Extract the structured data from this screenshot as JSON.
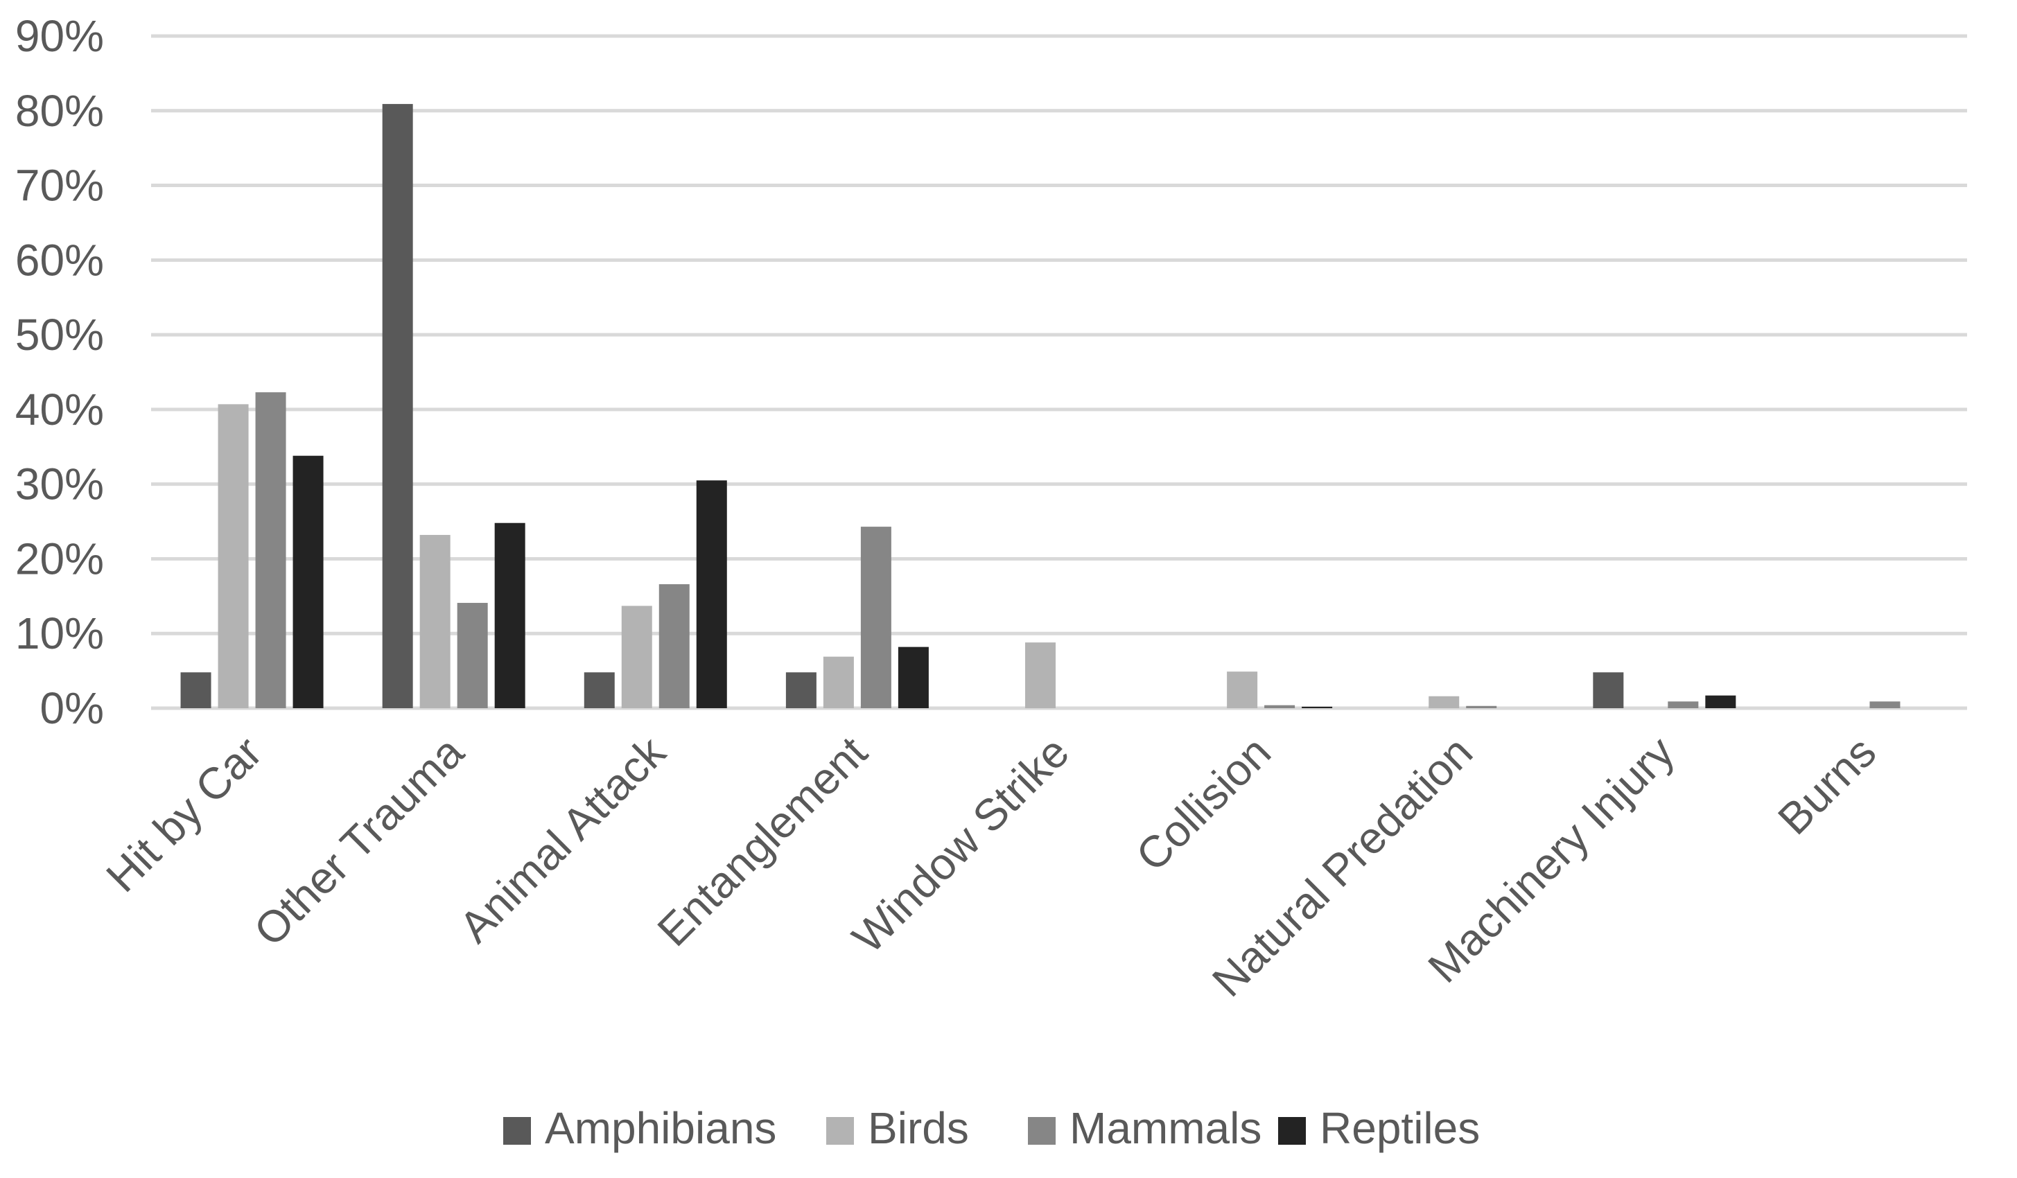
{
  "chart_data": {
    "type": "bar",
    "title": "",
    "xlabel": "",
    "ylabel": "",
    "ylim": [
      0,
      90
    ],
    "y_tick_step": 10,
    "y_tick_labels": [
      "0%",
      "10%",
      "20%",
      "30%",
      "40%",
      "50%",
      "60%",
      "70%",
      "80%",
      "90%"
    ],
    "categories": [
      "Hit by Car",
      "Other Trauma",
      "Animal Attack",
      "Entanglement",
      "Window Strike",
      "Collision",
      "Natural Predation",
      "Machinery Injury",
      "Burns"
    ],
    "series": [
      {
        "name": "Amphibians",
        "color": "#595959",
        "values": [
          4.8,
          80.9,
          4.8,
          4.8,
          0,
          0,
          0,
          4.8,
          0
        ]
      },
      {
        "name": "Birds",
        "color": "#b3b3b3",
        "values": [
          40.7,
          23.2,
          13.7,
          6.9,
          8.8,
          4.9,
          1.6,
          0,
          0
        ]
      },
      {
        "name": "Mammals",
        "color": "#868686",
        "values": [
          42.3,
          14.1,
          16.6,
          24.3,
          0,
          0.4,
          0.3,
          0.9,
          0.9
        ]
      },
      {
        "name": "Reptiles",
        "color": "#232323",
        "values": [
          33.8,
          24.8,
          30.5,
          8.2,
          0,
          0.2,
          0,
          1.7,
          0
        ]
      }
    ],
    "legend_position": "bottom",
    "grid": true
  }
}
